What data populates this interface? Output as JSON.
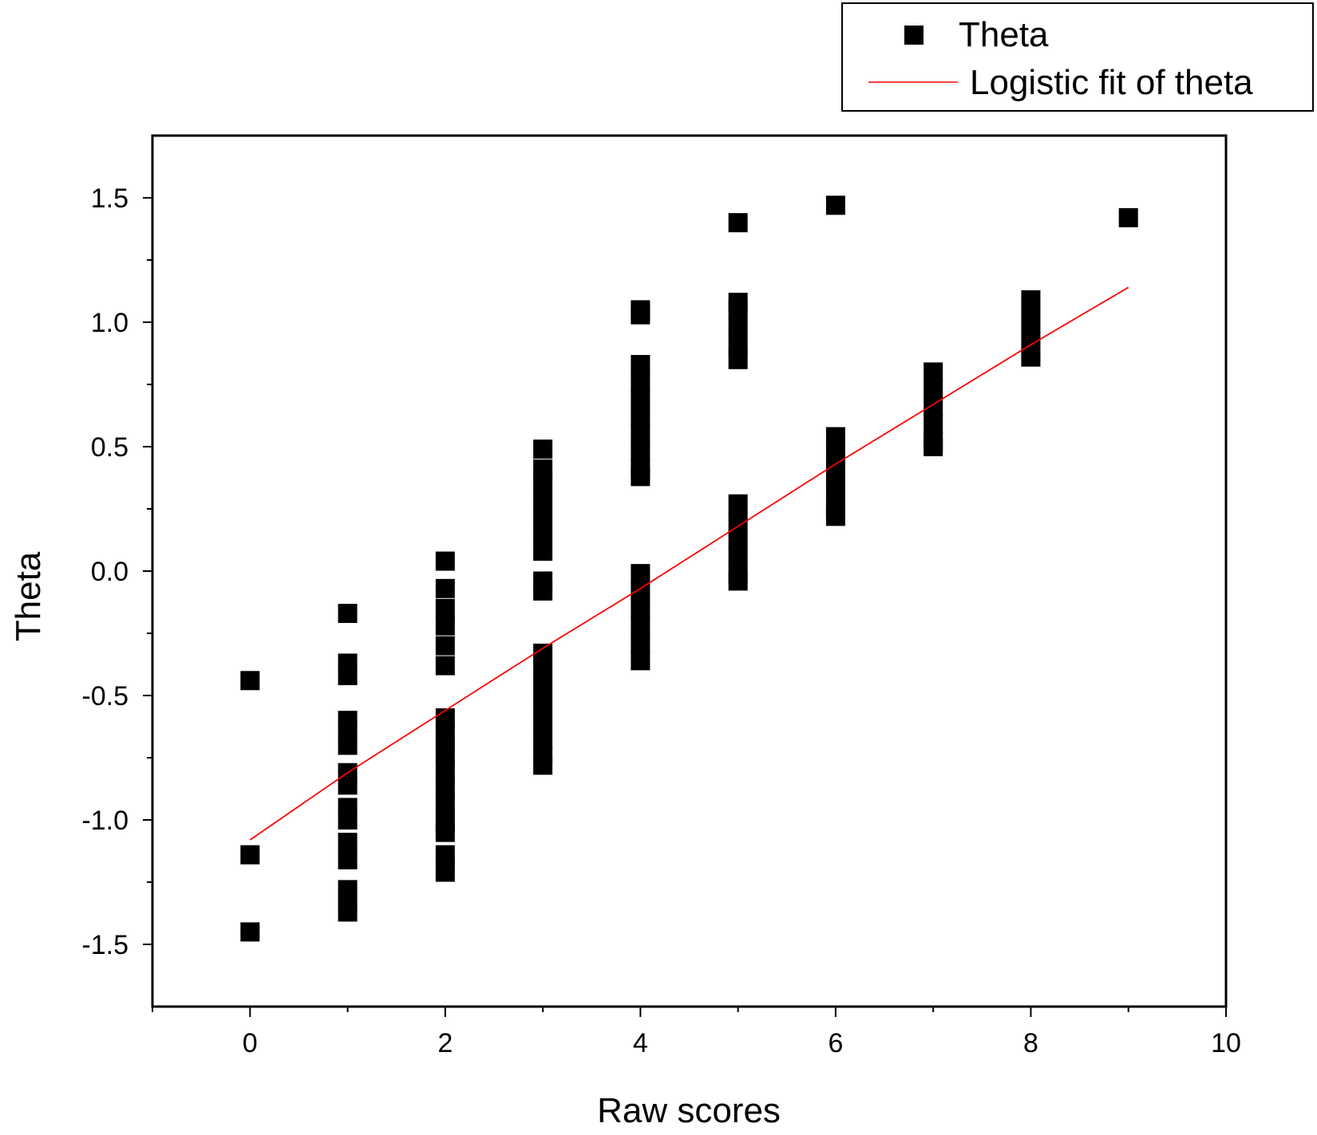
{
  "chart_data": {
    "type": "scatter",
    "xlabel": "Raw scores",
    "ylabel": "Theta",
    "xlim": [
      -1,
      10
    ],
    "ylim": [
      -1.75,
      1.75
    ],
    "x_ticks": [
      0,
      2,
      4,
      6,
      8,
      10
    ],
    "x_tick_labels": [
      "0",
      "2",
      "4",
      "6",
      "8",
      "10"
    ],
    "y_ticks": [
      -1.5,
      -1.0,
      -0.5,
      0.0,
      0.5,
      1.0,
      1.5
    ],
    "y_tick_labels": [
      "-1.5",
      "-1.0",
      "-0.5",
      "0.0",
      "0.5",
      "1.0",
      "1.5"
    ],
    "grid": false,
    "legend_position": "top-right",
    "series": [
      {
        "name": "Theta",
        "kind": "scatter",
        "marker": "square",
        "color": "#000000",
        "points": [
          [
            0,
            -0.44
          ],
          [
            0,
            -1.14
          ],
          [
            0,
            -1.45
          ],
          [
            1,
            -0.17
          ],
          [
            1,
            -0.37
          ],
          [
            1,
            -0.42
          ],
          [
            1,
            -0.6
          ],
          [
            1,
            -0.64
          ],
          [
            1,
            -0.7
          ],
          [
            1,
            -0.81
          ],
          [
            1,
            -0.86
          ],
          [
            1,
            -0.95
          ],
          [
            1,
            -1.0
          ],
          [
            1,
            -1.09
          ],
          [
            1,
            -1.16
          ],
          [
            1,
            -1.28
          ],
          [
            1,
            -1.33
          ],
          [
            1,
            -1.37
          ],
          [
            2,
            0.04
          ],
          [
            2,
            -0.07
          ],
          [
            2,
            -0.15
          ],
          [
            2,
            -0.22
          ],
          [
            2,
            -0.3
          ],
          [
            2,
            -0.38
          ],
          [
            2,
            -0.59
          ],
          [
            2,
            -0.66
          ],
          [
            2,
            -0.73
          ],
          [
            2,
            -0.8
          ],
          [
            2,
            -0.87
          ],
          [
            2,
            -0.94
          ],
          [
            2,
            -1.01
          ],
          [
            2,
            -1.05
          ],
          [
            2,
            -1.14
          ],
          [
            2,
            -1.21
          ],
          [
            3,
            0.49
          ],
          [
            3,
            0.41
          ],
          [
            3,
            0.36
          ],
          [
            3,
            0.29
          ],
          [
            3,
            0.22
          ],
          [
            3,
            0.15
          ],
          [
            3,
            0.08
          ],
          [
            3,
            -0.04
          ],
          [
            3,
            -0.08
          ],
          [
            3,
            -0.33
          ],
          [
            3,
            -0.4
          ],
          [
            3,
            -0.47
          ],
          [
            3,
            -0.54
          ],
          [
            3,
            -0.61
          ],
          [
            3,
            -0.68
          ],
          [
            3,
            -0.74
          ],
          [
            3,
            -0.78
          ],
          [
            4,
            1.05
          ],
          [
            4,
            1.03
          ],
          [
            4,
            0.83
          ],
          [
            4,
            0.76
          ],
          [
            4,
            0.69
          ],
          [
            4,
            0.62
          ],
          [
            4,
            0.55
          ],
          [
            4,
            0.48
          ],
          [
            4,
            0.41
          ],
          [
            4,
            0.38
          ],
          [
            4,
            -0.01
          ],
          [
            4,
            -0.08
          ],
          [
            4,
            -0.15
          ],
          [
            4,
            -0.22
          ],
          [
            4,
            -0.29
          ],
          [
            4,
            -0.36
          ],
          [
            5,
            1.4
          ],
          [
            5,
            1.08
          ],
          [
            5,
            1.05
          ],
          [
            5,
            0.98
          ],
          [
            5,
            0.91
          ],
          [
            5,
            0.85
          ],
          [
            5,
            0.27
          ],
          [
            5,
            0.2
          ],
          [
            5,
            0.13
          ],
          [
            5,
            0.06
          ],
          [
            5,
            -0.01
          ],
          [
            5,
            -0.04
          ],
          [
            6,
            1.47
          ],
          [
            6,
            0.54
          ],
          [
            6,
            0.47
          ],
          [
            6,
            0.4
          ],
          [
            6,
            0.33
          ],
          [
            6,
            0.26
          ],
          [
            6,
            0.22
          ],
          [
            7,
            0.8
          ],
          [
            7,
            0.73
          ],
          [
            7,
            0.66
          ],
          [
            7,
            0.59
          ],
          [
            7,
            0.52
          ],
          [
            7,
            0.5
          ],
          [
            8,
            1.09
          ],
          [
            8,
            1.02
          ],
          [
            8,
            0.95
          ],
          [
            8,
            0.88
          ],
          [
            8,
            0.86
          ],
          [
            9,
            1.42
          ]
        ]
      },
      {
        "name": "Logistic fit of theta",
        "kind": "line",
        "color": "#ff0000",
        "x": [
          0,
          1,
          2,
          3,
          4,
          5,
          6,
          7,
          8,
          9
        ],
        "y": [
          -1.08,
          -0.81,
          -0.56,
          -0.31,
          -0.07,
          0.18,
          0.43,
          0.67,
          0.91,
          1.14
        ]
      }
    ]
  }
}
